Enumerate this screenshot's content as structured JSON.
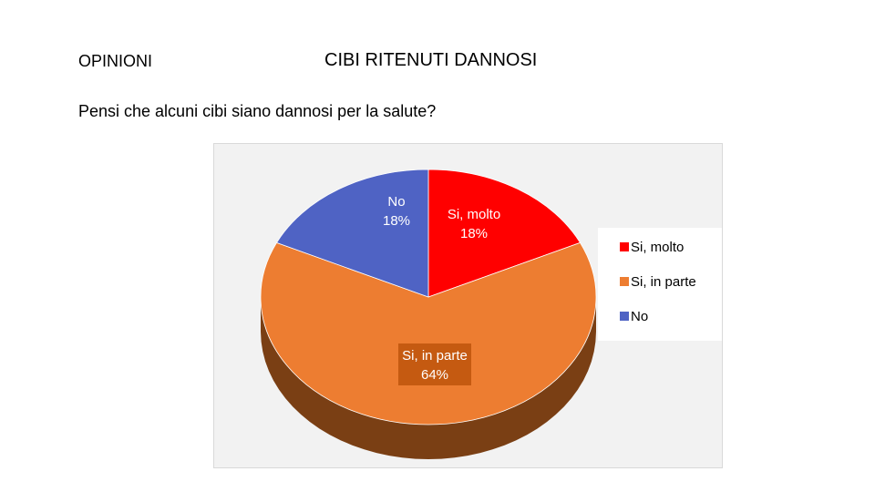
{
  "header": {
    "section_label": "OPINIONI",
    "title": "CIBI RITENUTI DANNOSI",
    "question": "Pensi che alcuni cibi siano dannosi per la salute?"
  },
  "chart_data": {
    "type": "pie",
    "style": "3d-pie",
    "labels": [
      "Si, molto",
      "Si, in parte",
      "No"
    ],
    "values": [
      18,
      64,
      18
    ],
    "value_labels": [
      "18%",
      "64%",
      "18%"
    ],
    "colors": [
      "#ff0000",
      "#ed7d31",
      "#4f63c4"
    ],
    "side_colors": [
      "#a00000",
      "#7a3f14",
      "#2c3a7e"
    ],
    "legend": {
      "placement": "right",
      "entries": [
        "Si, molto",
        "Si, in parte",
        "No"
      ]
    }
  }
}
